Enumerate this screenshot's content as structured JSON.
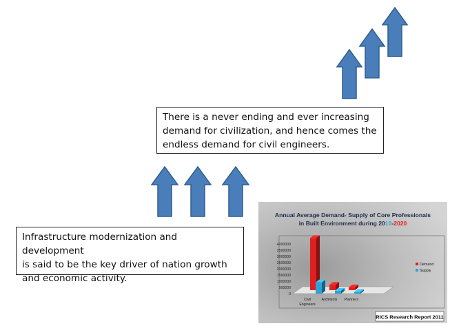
{
  "statements": {
    "top": [
      "There is a never ending and ever increasing",
      "demand for civilization, and hence comes the",
      "endless demand for civil engineers."
    ],
    "bottom": [
      "Infrastructure modernization and development",
      "is said to be the key driver of nation growth",
      "and economic activity."
    ]
  },
  "colors": {
    "arrow_fill": "#4a7ebb",
    "arrow_stroke": "#2f5d8f",
    "demand": "#e02020",
    "supply": "#2ea2d6",
    "title_highlight_blue": "#2ea2d6",
    "title_highlight_red": "#e02020"
  },
  "chart_data": {
    "type": "bar",
    "title_line1": "Annual Average Demand- Supply of Core Professionals",
    "title_line2_parts": [
      "in Built Environment during 20",
      "10",
      "-",
      "2020"
    ],
    "categories": [
      [
        "Civil",
        "Engineers"
      ],
      [
        "Architects"
      ],
      [
        "Planners"
      ]
    ],
    "series": [
      {
        "name": "Demand",
        "values": [
          4200000,
          430000,
          230000
        ]
      },
      {
        "name": "Supply",
        "values": [
          900000,
          230000,
          130000
        ]
      }
    ],
    "y_ticks": [
      "4000000",
      "3500000",
      "3000000",
      "2500000",
      "2000000",
      "1500000",
      "1000000",
      "500000",
      "0"
    ],
    "ylim": [
      0,
      4000000
    ],
    "legend_position": "right",
    "source": "RICS Research Report 2011"
  }
}
